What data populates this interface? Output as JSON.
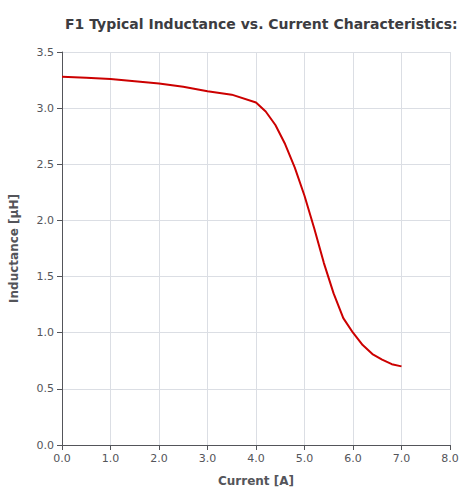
{
  "chart_data": {
    "type": "line",
    "title": "F1 Typical Inductance vs. Current Characteristics:",
    "xlabel": "Current [A]",
    "ylabel": "Inductance [µH]",
    "x": [
      0.0,
      0.5,
      1.0,
      1.5,
      2.0,
      2.5,
      3.0,
      3.5,
      4.0,
      4.2,
      4.4,
      4.6,
      4.8,
      5.0,
      5.2,
      5.4,
      5.6,
      5.8,
      6.0,
      6.2,
      6.4,
      6.6,
      6.8,
      7.0
    ],
    "values": [
      3.28,
      3.27,
      3.26,
      3.24,
      3.22,
      3.19,
      3.15,
      3.12,
      3.05,
      2.97,
      2.85,
      2.68,
      2.47,
      2.22,
      1.93,
      1.62,
      1.35,
      1.13,
      1.0,
      0.89,
      0.81,
      0.76,
      0.72,
      0.7
    ],
    "color": "#cc0000",
    "xlim": [
      0.0,
      8.0
    ],
    "ylim": [
      0.0,
      3.5
    ],
    "xticks": [
      {
        "value": 0,
        "label": "0.0"
      },
      {
        "value": 1,
        "label": "1.0"
      },
      {
        "value": 2,
        "label": "2.0"
      },
      {
        "value": 3,
        "label": "3.0"
      },
      {
        "value": 4,
        "label": "4.0"
      },
      {
        "value": 5,
        "label": "5.0"
      },
      {
        "value": 6,
        "label": "6.0"
      },
      {
        "value": 7,
        "label": "7.0"
      },
      {
        "value": 8,
        "label": "8.0"
      }
    ],
    "yticks": [
      {
        "value": 0,
        "label": "0.0"
      },
      0.5,
      {
        "value": 1,
        "label": "1.0"
      },
      1.5,
      {
        "value": 2,
        "label": "2.0"
      },
      2.5,
      {
        "value": 3,
        "label": "3.0"
      },
      3.5
    ],
    "grid": true
  }
}
